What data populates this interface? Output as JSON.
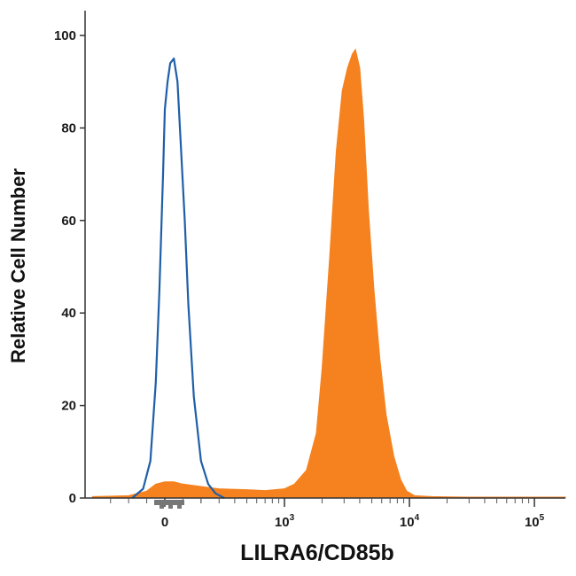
{
  "chart_data": {
    "type": "area",
    "xlabel": "LILRA6/CD85b",
    "ylabel": "Relative Cell Number",
    "x_scale": "biexponential",
    "xlim": [
      -400,
      200000
    ],
    "ylim": [
      0,
      100
    ],
    "y_ticks": [
      {
        "value": 0,
        "label": "0"
      },
      {
        "value": 20,
        "label": "20"
      },
      {
        "value": 40,
        "label": "40"
      },
      {
        "value": 60,
        "label": "60"
      },
      {
        "value": 80,
        "label": "80"
      },
      {
        "value": 100,
        "label": "100"
      }
    ],
    "x_ticks": [
      {
        "value": 0,
        "base": "0",
        "exp": ""
      },
      {
        "value": 1000,
        "base": "10",
        "exp": "3"
      },
      {
        "value": 10000,
        "base": "10",
        "exp": "4"
      },
      {
        "value": 100000,
        "base": "10",
        "exp": "5"
      }
    ],
    "grid": false,
    "series": [
      {
        "style": "outline",
        "color": "#1f5fa8",
        "x": [
          -180,
          -120,
          -80,
          -50,
          -30,
          -10,
          0,
          15,
          30,
          50,
          70,
          90,
          110,
          130,
          160,
          200,
          240,
          280,
          330
        ],
        "y": [
          0,
          2,
          8,
          25,
          45,
          70,
          84,
          90,
          94,
          95,
          90,
          75,
          60,
          42,
          22,
          8,
          3,
          1,
          0
        ]
      },
      {
        "style": "filled",
        "color": "#f5821f",
        "x": [
          -400,
          -200,
          -100,
          -50,
          0,
          50,
          100,
          200,
          300,
          500,
          700,
          1000,
          1200,
          1500,
          1800,
          2000,
          2300,
          2600,
          2900,
          3200,
          3500,
          3700,
          4000,
          4300,
          4700,
          5200,
          5800,
          6500,
          7500,
          8500,
          9500,
          11000,
          15000,
          30000,
          80000,
          200000
        ],
        "y": [
          0.3,
          0.5,
          1.5,
          3,
          3.5,
          3.5,
          3,
          2.5,
          2,
          1.8,
          1.6,
          2,
          3,
          6,
          14,
          28,
          52,
          75,
          88,
          93,
          96,
          97,
          93,
          82,
          62,
          45,
          30,
          18,
          9,
          4,
          1.5,
          0.5,
          0.3,
          0.2,
          0.2,
          0.2
        ]
      }
    ]
  }
}
